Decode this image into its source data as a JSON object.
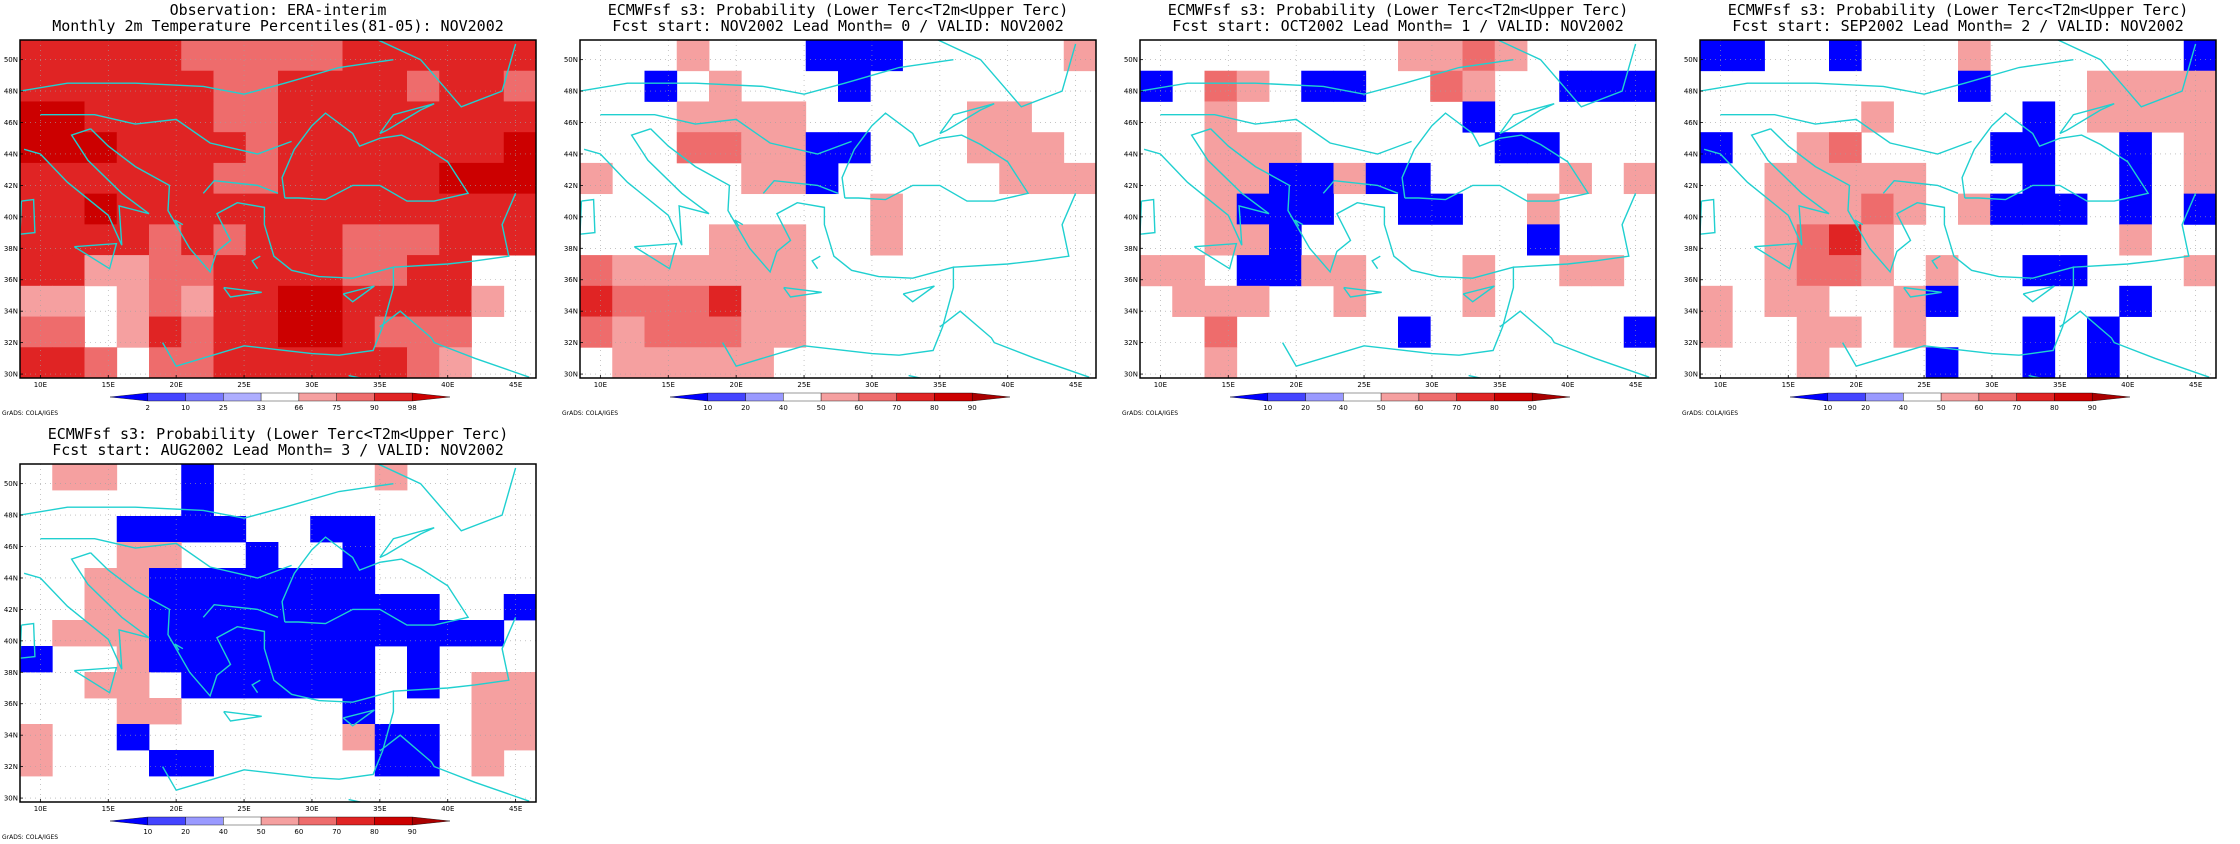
{
  "colors": {
    "blue_dark": "#0000ff",
    "blue_mid": "#4444ff",
    "blue_light": "#9a9aff",
    "red_light": "#f5a0a0",
    "red_mid": "#ee6c6c",
    "red_dark": "#e02424",
    "red_darkest": "#cc0000",
    "coast": "#20d0d0",
    "grid": "#a0a0a0"
  },
  "chart_data": [
    {
      "type": "heatmap",
      "title": "Observation: ERA-interim",
      "subtitle": "Monthly 2m Temperature Percentiles(81-05): NOV2002",
      "x_ticks": [
        "10E",
        "15E",
        "20E",
        "25E",
        "30E",
        "35E",
        "40E",
        "45E"
      ],
      "y_ticks": [
        "50N",
        "48N",
        "46N",
        "44N",
        "42N",
        "40N",
        "38N",
        "36N",
        "34N",
        "32N",
        "30N"
      ],
      "xlim": [
        8.5,
        46.5
      ],
      "ylim": [
        29.75,
        51.25
      ],
      "colorbar_labels": [
        "2",
        "10",
        "25",
        "33",
        "66",
        "75",
        "90",
        "98"
      ],
      "colorbar_colors": [
        "#0000ff",
        "#4444ff",
        "#7a7aff",
        "#aeaeff",
        "#ffffff",
        "#f5a0a0",
        "#ee6c6c",
        "#e02424",
        "#cc0000"
      ],
      "credit": "GrADS: COLA/IGES",
      "grid_cells": [
        "3333322222333333",
        "3333332233332332",
        "4433332233333333",
        "4443333233333334",
        "3333332233333444",
        "3343333333333333",
        "3333232333222333",
        "3311223333223300",
        "1101213344333310",
        "2201323344322200",
        "3320223333332100"
      ]
    },
    {
      "type": "heatmap",
      "title": "ECMWFsf s3: Probability (Lower Terc<T2m<Upper Terc)",
      "subtitle": "Fcst start: NOV2002  Lead Month= 0 / VALID: NOV2002",
      "x_ticks": [
        "10E",
        "15E",
        "20E",
        "25E",
        "30E",
        "35E",
        "40E",
        "45E"
      ],
      "y_ticks": [
        "50N",
        "48N",
        "46N",
        "44N",
        "42N",
        "40N",
        "38N",
        "36N",
        "34N",
        "32N",
        "30N"
      ],
      "xlim": [
        8.5,
        46.5
      ],
      "ylim": [
        29.75,
        51.25
      ],
      "colorbar_labels": [
        "10",
        "20",
        "40",
        "50",
        "60",
        "70",
        "80",
        "90"
      ],
      "colorbar_colors": [
        "#0000ff",
        "#4444ff",
        "#9a9aff",
        "#ffffff",
        "#f5a0a0",
        "#ee6c6c",
        "#e02424",
        "#cc0000",
        "#aa0000"
      ],
      "credit": "GrADS: COLA/IGES",
      "grid_cells": [
        "0001000aaa000001",
        "00a01000a0000000",
        "0001111000001100",
        "0002211aa0001110",
        "1000011a00000111",
        "0000000001000000",
        "0000111001000000",
        "2111111000000000",
        "3222311000000000",
        "2122211000000000",
        "0111110000000000"
      ]
    },
    {
      "type": "heatmap",
      "title": "ECMWFsf s3: Probability (Lower Terc<T2m<Upper Terc)",
      "subtitle": "Fcst start: OCT2002  Lead Month= 1 / VALID: NOV2002",
      "x_ticks": [
        "10E",
        "15E",
        "20E",
        "25E",
        "30E",
        "35E",
        "40E",
        "45E"
      ],
      "y_ticks": [
        "50N",
        "48N",
        "46N",
        "44N",
        "42N",
        "40N",
        "38N",
        "36N",
        "34N",
        "32N",
        "30N"
      ],
      "xlim": [
        8.5,
        46.5
      ],
      "ylim": [
        29.75,
        51.25
      ],
      "colorbar_labels": [
        "10",
        "20",
        "40",
        "50",
        "60",
        "70",
        "80",
        "90"
      ],
      "colorbar_colors": [
        "#0000ff",
        "#4444ff",
        "#9a9aff",
        "#ffffff",
        "#f5a0a0",
        "#ee6c6c",
        "#e02424",
        "#cc0000",
        "#aa0000"
      ],
      "credit": "GrADS: COLA/IGES",
      "grid_cells": [
        "0000000011210000",
        "a0210aa002100aaa",
        "0010000000a00000",
        "00111000000aa000",
        "0011aa1aa0000101",
        "001aaa00aa001000",
        "0011a0000000a000",
        "110aa11000100110",
        "0111001000100000",
        "00200000a000000a",
        "0010000000000000"
      ]
    },
    {
      "type": "heatmap",
      "title": "ECMWFsf s3: Probability (Lower Terc<T2m<Upper Terc)",
      "subtitle": "Fcst start: SEP2002  Lead Month= 2 / VALID: NOV2002",
      "x_ticks": [
        "10E",
        "15E",
        "20E",
        "25E",
        "30E",
        "35E",
        "40E",
        "45E"
      ],
      "y_ticks": [
        "50N",
        "48N",
        "46N",
        "44N",
        "42N",
        "40N",
        "38N",
        "36N",
        "34N",
        "32N",
        "30N"
      ],
      "xlim": [
        8.5,
        46.5
      ],
      "ylim": [
        29.75,
        51.25
      ],
      "colorbar_labels": [
        "10",
        "20",
        "40",
        "50",
        "60",
        "70",
        "80",
        "90"
      ],
      "colorbar_colors": [
        "#0000ff",
        "#4444ff",
        "#9a9aff",
        "#ffffff",
        "#f5a0a0",
        "#ee6c6c",
        "#e02424",
        "#cc0000",
        "#aa0000"
      ],
      "credit": "GrADS: COLA/IGES",
      "grid_cells": [
        "aa00a0001000000a",
        "00000000a0001111",
        "0000010000a01111",
        "a00120000aa00a01",
        "0011111000a00a01",
        "001112101aaa0a0a",
        "0012310000000100",
        "0012210100aa0001",
        "1011001a00000a00",
        "1001101000a0a000",
        "0001000a00a0a000"
      ]
    },
    {
      "type": "heatmap",
      "title": "ECMWFsf s3: Probability (Lower Terc<T2m<Upper Terc)",
      "subtitle": "Fcst start: AUG2002  Lead Month= 3 / VALID: NOV2002",
      "x_ticks": [
        "10E",
        "15E",
        "20E",
        "25E",
        "30E",
        "35E",
        "40E",
        "45E"
      ],
      "y_ticks": [
        "50N",
        "48N",
        "46N",
        "44N",
        "42N",
        "40N",
        "38N",
        "36N",
        "34N",
        "32N",
        "30N"
      ],
      "xlim": [
        8.5,
        46.5
      ],
      "ylim": [
        29.75,
        51.25
      ],
      "colorbar_labels": [
        "10",
        "20",
        "40",
        "50",
        "60",
        "70",
        "80",
        "90"
      ],
      "colorbar_colors": [
        "#0000ff",
        "#4444ff",
        "#9a9aff",
        "#ffffff",
        "#f5a0a0",
        "#ee6c6c",
        "#e02424",
        "#cc0000",
        "#aa0000"
      ],
      "credit": "GrADS: COLA/IGES",
      "grid_cells": [
        "01100a0000010000",
        "00000a0000000000",
        "000aaaa00aa00000",
        "0001100a00a00000",
        "0011aaaaaaa00000",
        "0011aaaaaaaaa00a",
        "0111aaaaaaaaaaa0",
        "a001aaaaaaa0a000",
        "00110aaaaaa0a011",
        "0001100000a00011",
        "100a0000001aa011",
        "1000aa00000aa010",
        "0000000000000000"
      ]
    }
  ]
}
